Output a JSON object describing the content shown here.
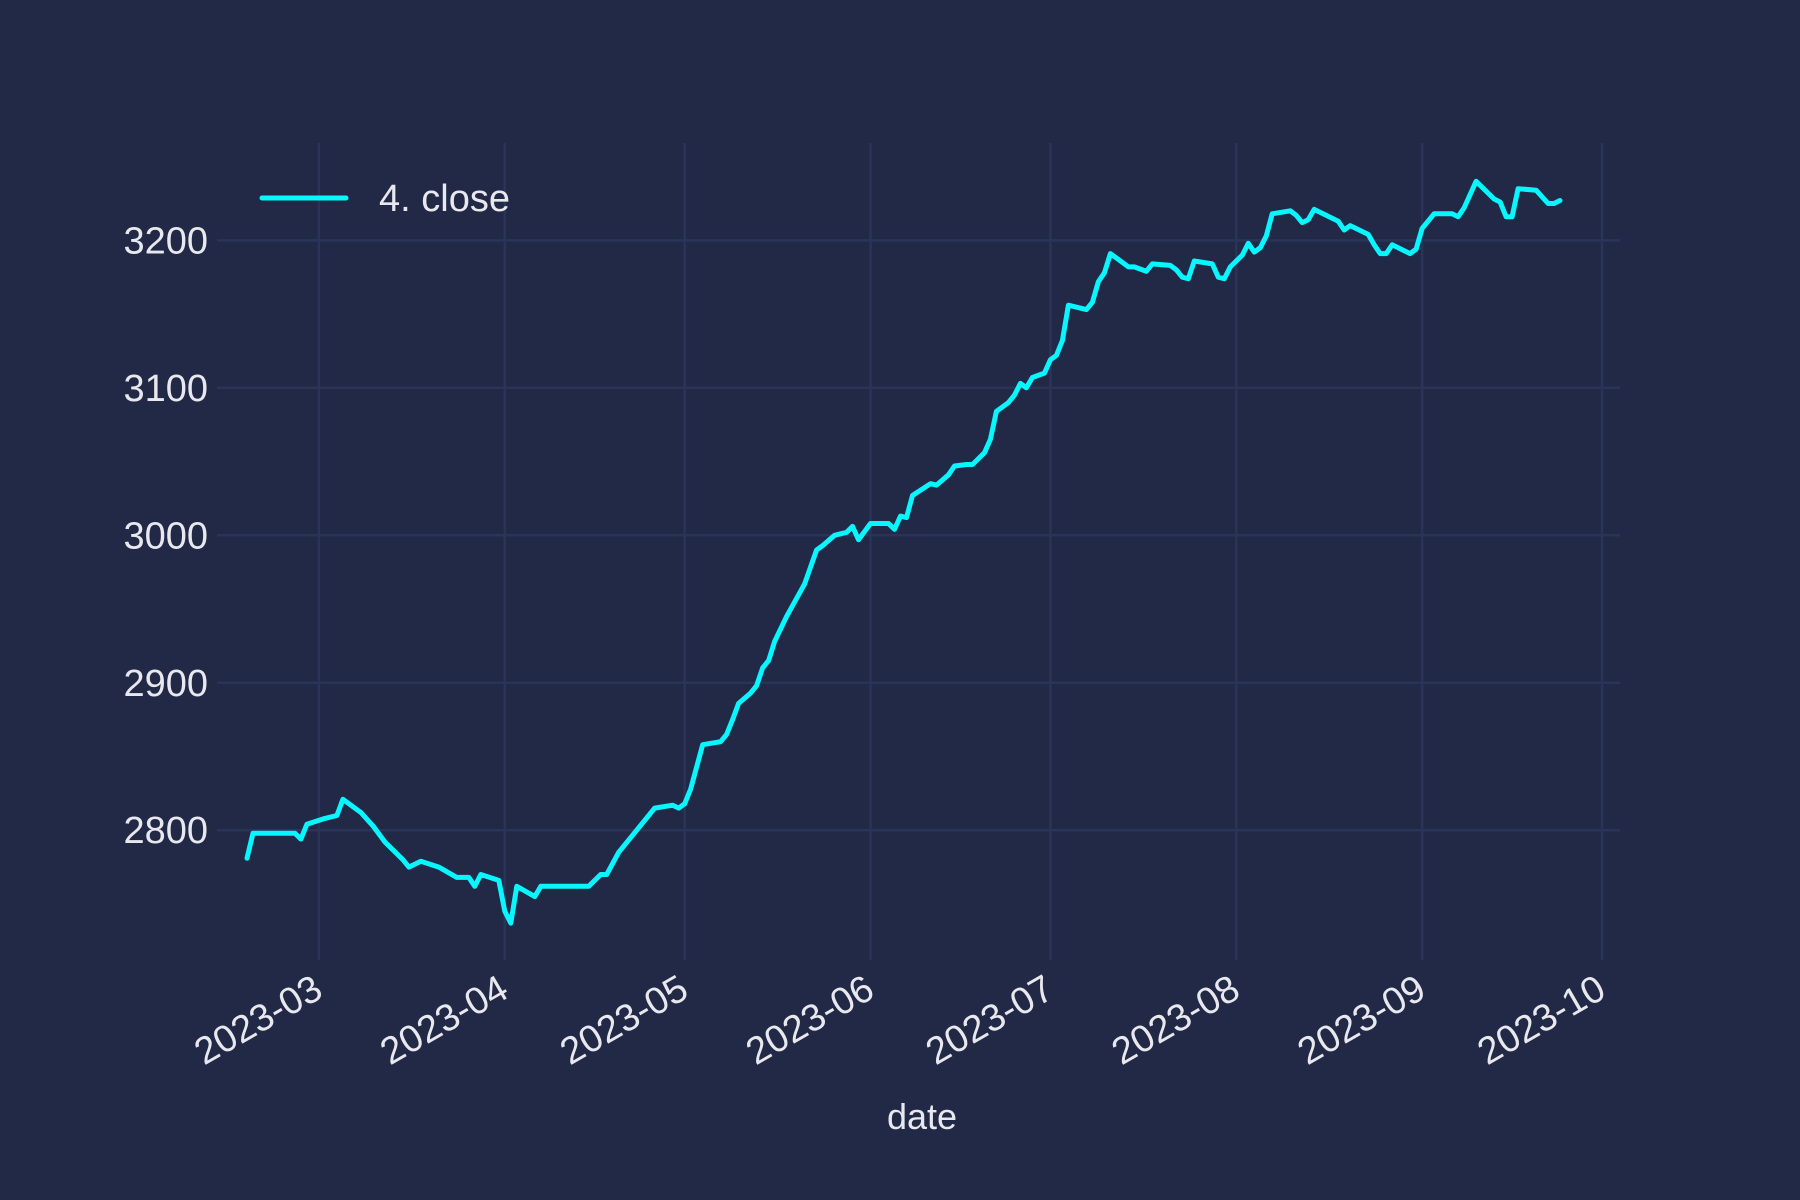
{
  "chart_data": {
    "type": "line",
    "title": "",
    "xlabel": "date",
    "ylabel": "",
    "x_axis_type": "date",
    "xlim": [
      "2023-02-12",
      "2023-10-04"
    ],
    "ylim": [
      2712,
      3266
    ],
    "x_ticks": [
      "2023-03-01",
      "2023-04-01",
      "2023-05-01",
      "2023-06-01",
      "2023-07-01",
      "2023-08-01",
      "2023-09-01",
      "2023-10-01"
    ],
    "x_tick_labels": [
      "2023-03",
      "2023-04",
      "2023-05",
      "2023-06",
      "2023-07",
      "2023-08",
      "2023-09",
      "2023-10"
    ],
    "y_ticks": [
      2800,
      2900,
      3000,
      3100,
      3200
    ],
    "y_tick_labels": [
      "2800",
      "2900",
      "3000",
      "3100",
      "3200"
    ],
    "grid": true,
    "legend_position": "top-left",
    "colors": {
      "background": "#212946",
      "grid": "#2A3459",
      "text": "#E8E8EE",
      "series": "#08F7FE"
    },
    "series": [
      {
        "name": "4. close",
        "color": "#08F7FE",
        "points": [
          [
            "2023-02-17",
            2781
          ],
          [
            "2023-02-18",
            2798
          ],
          [
            "2023-02-25",
            2798
          ],
          [
            "2023-02-26",
            2794
          ],
          [
            "2023-02-27",
            2804
          ],
          [
            "2023-03-02",
            2808
          ],
          [
            "2023-03-04",
            2810
          ],
          [
            "2023-03-05",
            2821
          ],
          [
            "2023-03-08",
            2812
          ],
          [
            "2023-03-10",
            2803
          ],
          [
            "2023-03-12",
            2792
          ],
          [
            "2023-03-15",
            2780
          ],
          [
            "2023-03-16",
            2775
          ],
          [
            "2023-03-18",
            2779
          ],
          [
            "2023-03-21",
            2775
          ],
          [
            "2023-03-24",
            2768
          ],
          [
            "2023-03-26",
            2768
          ],
          [
            "2023-03-27",
            2762
          ],
          [
            "2023-03-28",
            2770
          ],
          [
            "2023-03-31",
            2766
          ],
          [
            "2023-04-01",
            2745
          ],
          [
            "2023-04-02",
            2737
          ],
          [
            "2023-04-03",
            2762
          ],
          [
            "2023-04-06",
            2755
          ],
          [
            "2023-04-07",
            2762
          ],
          [
            "2023-04-15",
            2762
          ],
          [
            "2023-04-17",
            2770
          ],
          [
            "2023-04-18",
            2770
          ],
          [
            "2023-04-20",
            2785
          ],
          [
            "2023-04-22",
            2795
          ],
          [
            "2023-04-23",
            2800
          ],
          [
            "2023-04-25",
            2810
          ],
          [
            "2023-04-26",
            2815
          ],
          [
            "2023-04-29",
            2817
          ],
          [
            "2023-04-30",
            2815
          ],
          [
            "2023-05-01",
            2818
          ],
          [
            "2023-05-02",
            2828
          ],
          [
            "2023-05-04",
            2858
          ],
          [
            "2023-05-07",
            2860
          ],
          [
            "2023-05-08",
            2865
          ],
          [
            "2023-05-09",
            2875
          ],
          [
            "2023-05-10",
            2886
          ],
          [
            "2023-05-12",
            2893
          ],
          [
            "2023-05-13",
            2898
          ],
          [
            "2023-05-14",
            2910
          ],
          [
            "2023-05-15",
            2915
          ],
          [
            "2023-05-16",
            2928
          ],
          [
            "2023-05-18",
            2945
          ],
          [
            "2023-05-21",
            2967
          ],
          [
            "2023-05-23",
            2990
          ],
          [
            "2023-05-24",
            2993
          ],
          [
            "2023-05-26",
            3000
          ],
          [
            "2023-05-28",
            3002
          ],
          [
            "2023-05-29",
            3006
          ],
          [
            "2023-05-30",
            2997
          ],
          [
            "2023-06-01",
            3008
          ],
          [
            "2023-06-03",
            3008
          ],
          [
            "2023-06-04",
            3008
          ],
          [
            "2023-06-05",
            3004
          ],
          [
            "2023-06-06",
            3013
          ],
          [
            "2023-06-07",
            3012
          ],
          [
            "2023-06-08",
            3027
          ],
          [
            "2023-06-11",
            3035
          ],
          [
            "2023-06-12",
            3034
          ],
          [
            "2023-06-14",
            3041
          ],
          [
            "2023-06-15",
            3047
          ],
          [
            "2023-06-17",
            3048
          ],
          [
            "2023-06-18",
            3048
          ],
          [
            "2023-06-19",
            3052
          ],
          [
            "2023-06-20",
            3056
          ],
          [
            "2023-06-21",
            3065
          ],
          [
            "2023-06-22",
            3084
          ],
          [
            "2023-06-24",
            3090
          ],
          [
            "2023-06-25",
            3095
          ],
          [
            "2023-06-26",
            3103
          ],
          [
            "2023-06-27",
            3100
          ],
          [
            "2023-06-28",
            3107
          ],
          [
            "2023-06-30",
            3110
          ],
          [
            "2023-07-01",
            3119
          ],
          [
            "2023-07-02",
            3122
          ],
          [
            "2023-07-03",
            3132
          ],
          [
            "2023-07-04",
            3156
          ],
          [
            "2023-07-07",
            3153
          ],
          [
            "2023-07-08",
            3158
          ],
          [
            "2023-07-09",
            3172
          ],
          [
            "2023-07-10",
            3178
          ],
          [
            "2023-07-11",
            3191
          ],
          [
            "2023-07-12",
            3188
          ],
          [
            "2023-07-14",
            3182
          ],
          [
            "2023-07-15",
            3182
          ],
          [
            "2023-07-17",
            3179
          ],
          [
            "2023-07-18",
            3184
          ],
          [
            "2023-07-21",
            3183
          ],
          [
            "2023-07-22",
            3180
          ],
          [
            "2023-07-23",
            3175
          ],
          [
            "2023-07-24",
            3174
          ],
          [
            "2023-07-25",
            3186
          ],
          [
            "2023-07-28",
            3184
          ],
          [
            "2023-07-29",
            3175
          ],
          [
            "2023-07-30",
            3174
          ],
          [
            "2023-07-31",
            3182
          ],
          [
            "2023-08-02",
            3190
          ],
          [
            "2023-08-03",
            3198
          ],
          [
            "2023-08-04",
            3192
          ],
          [
            "2023-08-05",
            3195
          ],
          [
            "2023-08-06",
            3203
          ],
          [
            "2023-08-07",
            3218
          ],
          [
            "2023-08-10",
            3220
          ],
          [
            "2023-08-11",
            3217
          ],
          [
            "2023-08-12",
            3212
          ],
          [
            "2023-08-13",
            3214
          ],
          [
            "2023-08-14",
            3221
          ],
          [
            "2023-08-17",
            3215
          ],
          [
            "2023-08-18",
            3213
          ],
          [
            "2023-08-19",
            3207
          ],
          [
            "2023-08-20",
            3210
          ],
          [
            "2023-08-23",
            3204
          ],
          [
            "2023-08-24",
            3197
          ],
          [
            "2023-08-25",
            3191
          ],
          [
            "2023-08-26",
            3191
          ],
          [
            "2023-08-27",
            3197
          ],
          [
            "2023-08-30",
            3191
          ],
          [
            "2023-08-31",
            3194
          ],
          [
            "2023-09-01",
            3208
          ],
          [
            "2023-09-03",
            3218
          ],
          [
            "2023-09-06",
            3218
          ],
          [
            "2023-09-07",
            3216
          ],
          [
            "2023-09-08",
            3222
          ],
          [
            "2023-09-10",
            3240
          ],
          [
            "2023-09-13",
            3228
          ],
          [
            "2023-09-14",
            3226
          ],
          [
            "2023-09-15",
            3216
          ],
          [
            "2023-09-16",
            3216
          ],
          [
            "2023-09-17",
            3235
          ],
          [
            "2023-09-20",
            3234
          ],
          [
            "2023-09-22",
            3225
          ],
          [
            "2023-09-23",
            3225
          ],
          [
            "2023-09-24",
            3227
          ]
        ]
      }
    ]
  }
}
